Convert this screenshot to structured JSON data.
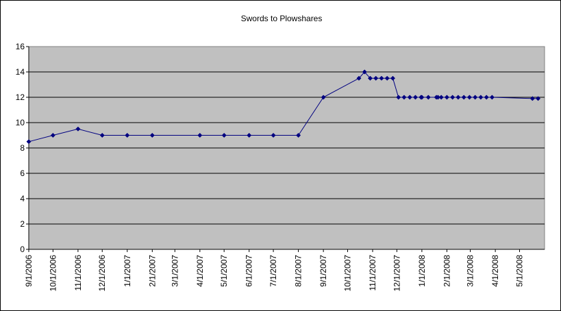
{
  "chart_data": {
    "type": "line",
    "title": "Swords to Plowshares",
    "xlabel": "",
    "ylabel": "",
    "ylim": [
      0,
      16
    ],
    "yticks": [
      0,
      2,
      4,
      6,
      8,
      10,
      12,
      14,
      16
    ],
    "xlim": [
      "2006-09-01",
      "2008-06-01"
    ],
    "xtick_labels": [
      "9/1/2006",
      "10/1/2006",
      "11/1/2006",
      "12/1/2006",
      "1/1/2007",
      "2/1/2007",
      "3/1/2007",
      "4/1/2007",
      "5/1/2007",
      "6/1/2007",
      "7/1/2007",
      "8/1/2007",
      "9/1/2007",
      "10/1/2007",
      "11/1/2007",
      "12/1/2007",
      "1/1/2008",
      "2/1/2008",
      "3/1/2008",
      "4/1/2008",
      "5/1/2008"
    ],
    "xtick_dates": [
      "2006-09-01",
      "2006-10-01",
      "2006-11-01",
      "2006-12-01",
      "2007-01-01",
      "2007-02-01",
      "2007-03-01",
      "2007-04-01",
      "2007-05-01",
      "2007-06-01",
      "2007-07-01",
      "2007-08-01",
      "2007-09-01",
      "2007-10-01",
      "2007-11-01",
      "2007-12-01",
      "2008-01-01",
      "2008-02-01",
      "2008-03-01",
      "2008-04-01",
      "2008-05-01"
    ],
    "grid": true,
    "legend": "none",
    "plot_background": "#c0c0c0",
    "line_color": "#000080",
    "series": [
      {
        "name": "",
        "x": [
          "2006-09-01",
          "2006-10-01",
          "2006-11-01",
          "2006-12-01",
          "2007-01-01",
          "2007-02-01",
          "2007-04-01",
          "2007-05-01",
          "2007-06-01",
          "2007-07-01",
          "2007-08-01",
          "2007-09-01",
          "2007-10-15",
          "2007-10-22",
          "2007-10-29",
          "2007-11-05",
          "2007-11-12",
          "2007-11-19",
          "2007-11-26",
          "2007-12-03",
          "2007-12-10",
          "2007-12-17",
          "2007-12-24",
          "2007-12-31",
          "2008-01-01",
          "2008-01-09",
          "2008-01-19",
          "2008-01-21",
          "2008-01-25",
          "2008-02-01",
          "2008-02-08",
          "2008-02-15",
          "2008-02-22",
          "2008-02-29",
          "2008-03-07",
          "2008-03-14",
          "2008-03-21",
          "2008-03-28",
          "2008-05-17",
          "2008-05-24"
        ],
        "y": [
          8.5,
          9,
          9.5,
          9,
          9,
          9,
          9,
          9,
          9,
          9,
          9,
          12,
          13.5,
          14,
          13.5,
          13.5,
          13.5,
          13.5,
          13.5,
          12,
          12,
          12,
          12,
          12,
          12,
          12,
          12,
          12,
          12,
          12,
          12,
          12,
          12,
          12,
          12,
          12,
          12,
          12,
          11.9,
          11.9
        ]
      }
    ]
  }
}
